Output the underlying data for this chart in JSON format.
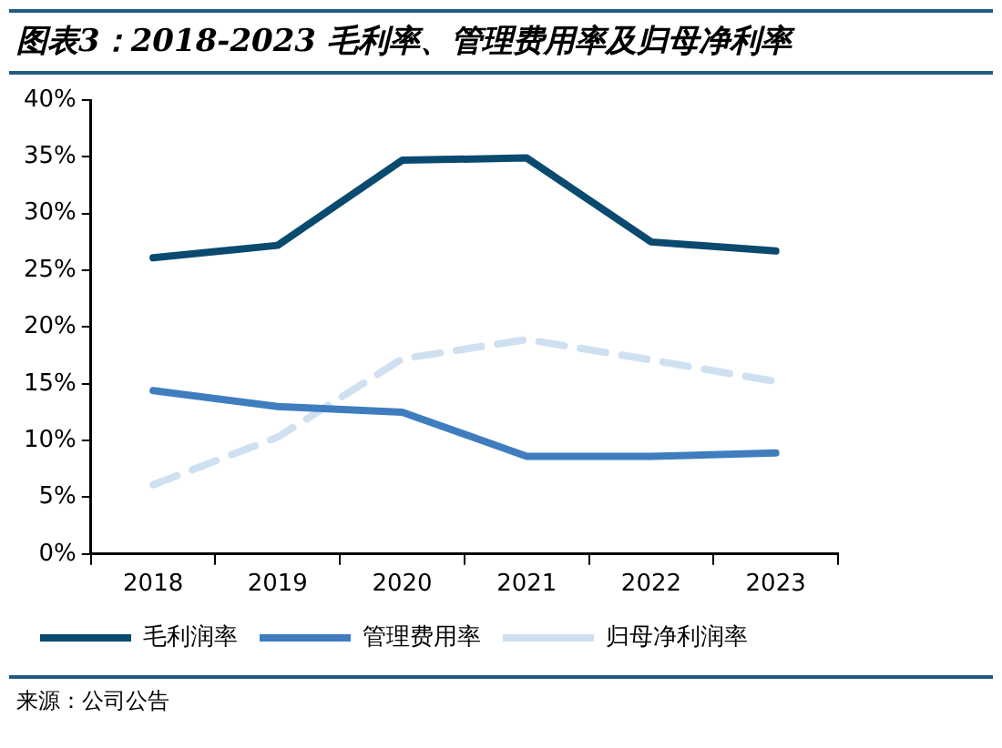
{
  "chart_data": {
    "type": "line",
    "title": "图表3：2018-2023 毛利率、管理费用率及归母净利率",
    "categories": [
      "2018",
      "2019",
      "2020",
      "2021",
      "2022",
      "2023"
    ],
    "series": [
      {
        "name": "毛利润率",
        "color": "#0b4a6f",
        "values": [
          26.1,
          27.2,
          34.7,
          34.9,
          27.5,
          26.7
        ]
      },
      {
        "name": "管理费用率",
        "color": "#3f7dbf",
        "values": [
          14.4,
          13.0,
          12.5,
          8.6,
          8.6,
          8.9
        ]
      },
      {
        "name": "归母净利润率",
        "color": "#cfe0f1",
        "values": [
          6.1,
          10.3,
          17.2,
          18.9,
          17.1,
          15.2
        ],
        "line_style": "dashed"
      }
    ],
    "ylim": [
      0,
      40
    ],
    "yticks": [
      {
        "value": 0,
        "label": "0%"
      },
      {
        "value": 5,
        "label": "5%"
      },
      {
        "value": 10,
        "label": "10%"
      },
      {
        "value": 15,
        "label": "15%"
      },
      {
        "value": 20,
        "label": "20%"
      },
      {
        "value": 25,
        "label": "25%"
      },
      {
        "value": 30,
        "label": "30%"
      },
      {
        "value": 35,
        "label": "35%"
      },
      {
        "value": 40,
        "label": "40%"
      }
    ],
    "grid": false,
    "legend": "bottom",
    "marker": "none",
    "annotations": [
      "来源：公司公告"
    ]
  }
}
